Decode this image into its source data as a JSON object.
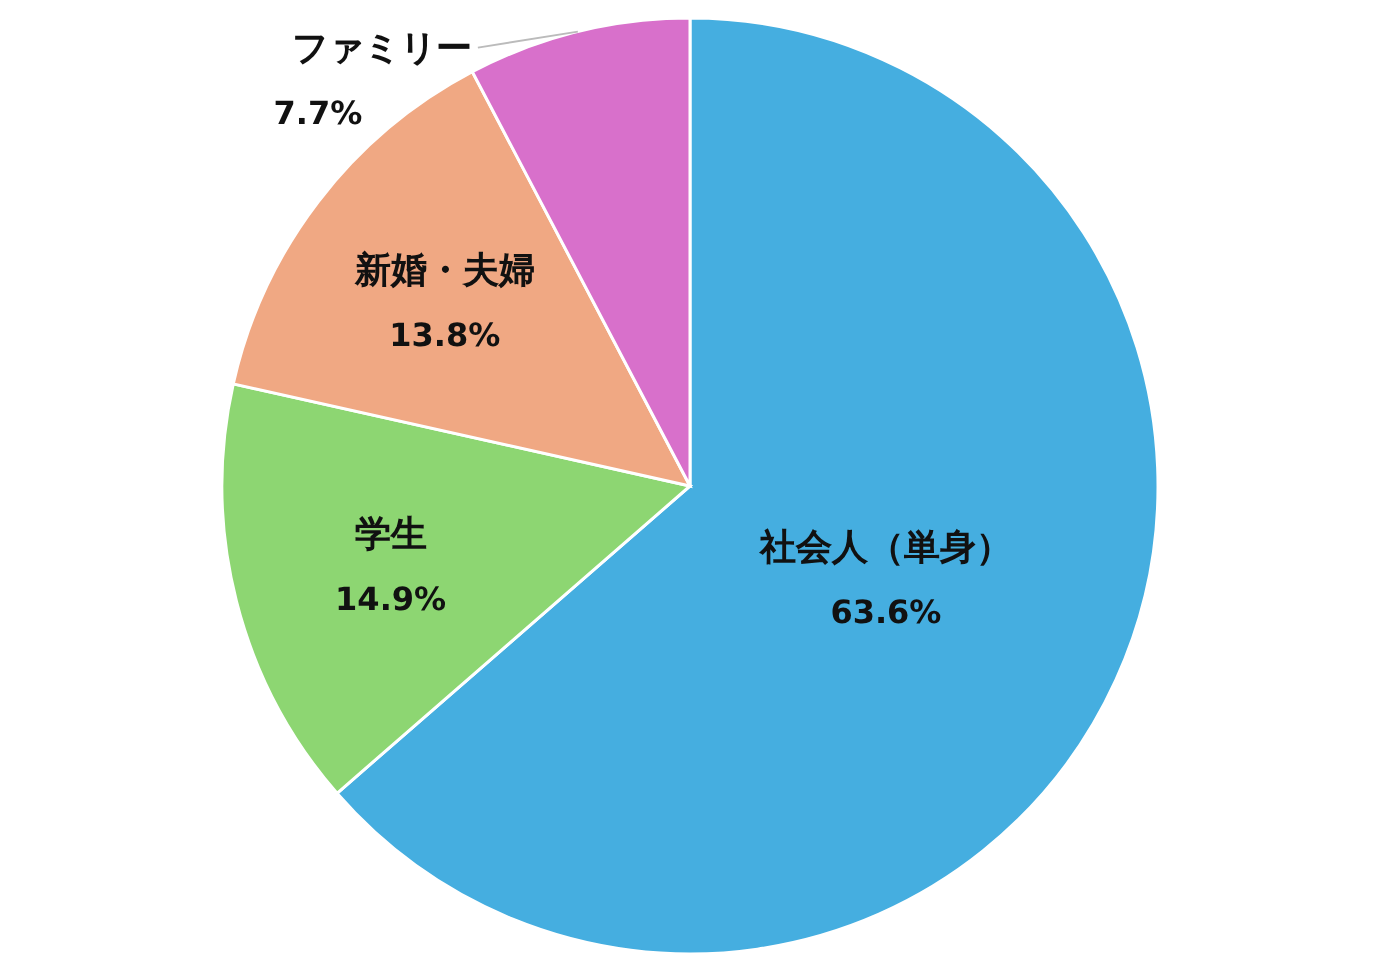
{
  "chart_data": {
    "type": "pie",
    "categories": [
      "社会人（単身）",
      "学生",
      "新婚・夫婦",
      "ファミリー"
    ],
    "values": [
      63.6,
      14.9,
      13.8,
      7.7
    ],
    "colors": [
      "#45aee0",
      "#8dd672",
      "#f0a883",
      "#d870cb"
    ],
    "value_labels": [
      "63.6%",
      "14.9%",
      "13.8%",
      "7.7%"
    ]
  }
}
